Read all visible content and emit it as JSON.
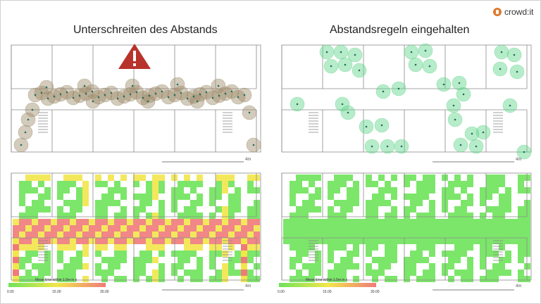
{
  "titles": {
    "left": "Unterschreiten des Abstands",
    "right": "Abstandsregeln eingehalten"
  },
  "brand": {
    "name": "crowd:it",
    "accent": "#e07a2f"
  },
  "warning": {
    "icon": "warning-triangle-icon",
    "color": "#b8332b"
  },
  "scale": {
    "label": "4m"
  },
  "colorbar": {
    "label": "Mean time within 1.5m in s",
    "ticks": [
      "0.00",
      "15.00",
      "30.00"
    ]
  },
  "colors": {
    "agent_close": "#9d8c6b",
    "agent_safe": "#5fd48a",
    "agent_dot": "#1f6f5a",
    "heat_low": "#6ee35a",
    "heat_mid": "#f2e64a",
    "heat_high": "#f07a7a"
  }
}
